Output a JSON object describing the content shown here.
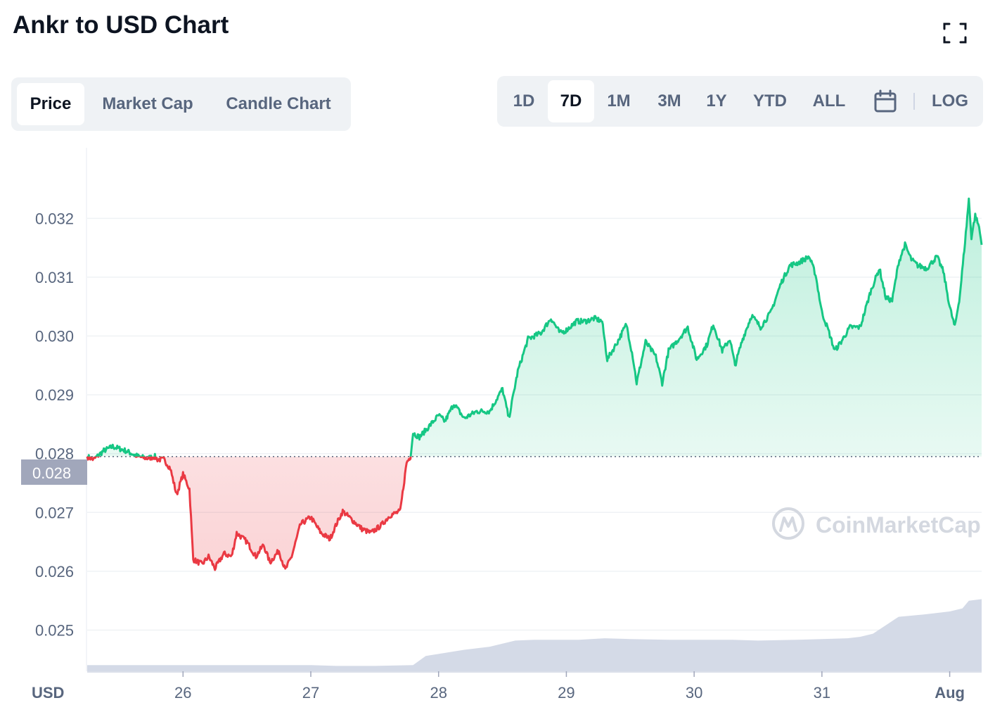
{
  "title": "Ankr to USD Chart",
  "expand_icon": "expand-icon",
  "calendar_icon": "calendar-icon",
  "tabs": [
    {
      "label": "Price",
      "active": true
    },
    {
      "label": "Market Cap",
      "active": false
    },
    {
      "label": "Candle Chart",
      "active": false
    }
  ],
  "ranges": [
    {
      "label": "1D",
      "active": false
    },
    {
      "label": "7D",
      "active": true
    },
    {
      "label": "1M",
      "active": false
    },
    {
      "label": "3M",
      "active": false
    },
    {
      "label": "1Y",
      "active": false
    },
    {
      "label": "YTD",
      "active": false
    },
    {
      "label": "ALL",
      "active": false
    }
  ],
  "log_label": "LOG",
  "watermark": "CoinMarketCap",
  "colors": {
    "up": "#16c784",
    "down": "#ea3943",
    "volume": "#cfd6e4",
    "current_label_bg": "#a1a7bb"
  },
  "chart_data": {
    "type": "area",
    "xlabel": "USD",
    "y_ticks": [
      "0.025",
      "0.026",
      "0.027",
      "0.028",
      "0.029",
      "0.030",
      "0.031",
      "0.032"
    ],
    "x_ticks": [
      "26",
      "27",
      "28",
      "29",
      "30",
      "31",
      "Aug"
    ],
    "ylim": [
      0.0243,
      0.0332
    ],
    "x_range_days": [
      25.25,
      32.25
    ],
    "baseline_price": 0.02795,
    "current_label": "0.028",
    "grid": true,
    "series": [
      {
        "values": [
          [
            25.25,
            0.02795
          ],
          [
            25.3,
            0.0279
          ],
          [
            25.38,
            0.02805
          ],
          [
            25.45,
            0.02812
          ],
          [
            25.55,
            0.02805
          ],
          [
            25.65,
            0.02795
          ],
          [
            25.72,
            0.02792
          ],
          [
            25.78,
            0.02795
          ],
          [
            25.8,
            0.0279
          ],
          [
            25.85,
            0.0279
          ],
          [
            25.9,
            0.02775
          ],
          [
            25.95,
            0.0273
          ],
          [
            26.0,
            0.02765
          ],
          [
            26.05,
            0.0274
          ],
          [
            26.08,
            0.0262
          ],
          [
            26.15,
            0.02612
          ],
          [
            26.2,
            0.02625
          ],
          [
            26.25,
            0.02605
          ],
          [
            26.32,
            0.0263
          ],
          [
            26.38,
            0.02625
          ],
          [
            26.42,
            0.02665
          ],
          [
            26.5,
            0.0265
          ],
          [
            26.57,
            0.02625
          ],
          [
            26.63,
            0.02645
          ],
          [
            26.68,
            0.02615
          ],
          [
            26.75,
            0.02635
          ],
          [
            26.8,
            0.02602
          ],
          [
            26.85,
            0.02625
          ],
          [
            26.92,
            0.0268
          ],
          [
            27.0,
            0.02692
          ],
          [
            27.08,
            0.02665
          ],
          [
            27.15,
            0.02655
          ],
          [
            27.2,
            0.0268
          ],
          [
            27.25,
            0.02702
          ],
          [
            27.32,
            0.02688
          ],
          [
            27.4,
            0.02672
          ],
          [
            27.47,
            0.02665
          ],
          [
            27.55,
            0.02678
          ],
          [
            27.62,
            0.02695
          ],
          [
            27.7,
            0.02702
          ],
          [
            27.75,
            0.02785
          ],
          [
            27.78,
            0.02795
          ],
          [
            27.8,
            0.02835
          ],
          [
            27.85,
            0.02828
          ],
          [
            27.92,
            0.02845
          ],
          [
            28.0,
            0.02865
          ],
          [
            28.05,
            0.02855
          ],
          [
            28.12,
            0.02885
          ],
          [
            28.2,
            0.0286
          ],
          [
            28.3,
            0.02872
          ],
          [
            28.4,
            0.02872
          ],
          [
            28.5,
            0.0291
          ],
          [
            28.55,
            0.0286
          ],
          [
            28.62,
            0.0294
          ],
          [
            28.7,
            0.02995
          ],
          [
            28.8,
            0.03005
          ],
          [
            28.88,
            0.0303
          ],
          [
            28.95,
            0.03005
          ],
          [
            29.0,
            0.0301
          ],
          [
            29.08,
            0.03025
          ],
          [
            29.15,
            0.03025
          ],
          [
            29.22,
            0.0303
          ],
          [
            29.28,
            0.03025
          ],
          [
            29.32,
            0.0296
          ],
          [
            29.4,
            0.0299
          ],
          [
            29.47,
            0.0302
          ],
          [
            29.52,
            0.02965
          ],
          [
            29.55,
            0.0292
          ],
          [
            29.62,
            0.0299
          ],
          [
            29.7,
            0.02965
          ],
          [
            29.75,
            0.0292
          ],
          [
            29.8,
            0.02975
          ],
          [
            29.88,
            0.02995
          ],
          [
            29.95,
            0.03015
          ],
          [
            30.02,
            0.0296
          ],
          [
            30.1,
            0.02985
          ],
          [
            30.15,
            0.0302
          ],
          [
            30.22,
            0.02975
          ],
          [
            30.28,
            0.02995
          ],
          [
            30.32,
            0.0295
          ],
          [
            30.38,
            0.02995
          ],
          [
            30.45,
            0.03035
          ],
          [
            30.52,
            0.03015
          ],
          [
            30.6,
            0.0304
          ],
          [
            30.68,
            0.0309
          ],
          [
            30.75,
            0.0312
          ],
          [
            30.82,
            0.03125
          ],
          [
            30.9,
            0.03135
          ],
          [
            30.95,
            0.03105
          ],
          [
            31.0,
            0.0304
          ],
          [
            31.05,
            0.0301
          ],
          [
            31.1,
            0.02975
          ],
          [
            31.15,
            0.0299
          ],
          [
            31.22,
            0.03015
          ],
          [
            31.3,
            0.03015
          ],
          [
            31.38,
            0.03075
          ],
          [
            31.45,
            0.03115
          ],
          [
            31.5,
            0.03065
          ],
          [
            31.55,
            0.0306
          ],
          [
            31.6,
            0.03125
          ],
          [
            31.65,
            0.03155
          ],
          [
            31.7,
            0.0313
          ],
          [
            31.75,
            0.0312
          ],
          [
            31.82,
            0.03115
          ],
          [
            31.9,
            0.03135
          ],
          [
            31.95,
            0.0311
          ],
          [
            32.0,
            0.0305
          ],
          [
            32.04,
            0.03015
          ],
          [
            32.08,
            0.0307
          ],
          [
            32.12,
            0.0316
          ],
          [
            32.15,
            0.03232
          ],
          [
            32.17,
            0.03168
          ],
          [
            32.2,
            0.03205
          ],
          [
            32.23,
            0.03185
          ],
          [
            32.25,
            0.03155
          ]
        ]
      }
    ],
    "volume": {
      "ylim": [
        0,
        1
      ],
      "values": [
        [
          25.25,
          0.08
        ],
        [
          25.8,
          0.08
        ],
        [
          26.0,
          0.08
        ],
        [
          26.5,
          0.08
        ],
        [
          27.0,
          0.08
        ],
        [
          27.2,
          0.07
        ],
        [
          27.5,
          0.07
        ],
        [
          27.8,
          0.08
        ],
        [
          27.9,
          0.2
        ],
        [
          28.2,
          0.28
        ],
        [
          28.4,
          0.32
        ],
        [
          28.6,
          0.4
        ],
        [
          28.75,
          0.41
        ],
        [
          28.9,
          0.41
        ],
        [
          29.1,
          0.41
        ],
        [
          29.3,
          0.43
        ],
        [
          29.5,
          0.42
        ],
        [
          29.8,
          0.41
        ],
        [
          30.0,
          0.41
        ],
        [
          30.3,
          0.41
        ],
        [
          30.5,
          0.4
        ],
        [
          30.8,
          0.41
        ],
        [
          31.0,
          0.42
        ],
        [
          31.2,
          0.43
        ],
        [
          31.3,
          0.45
        ],
        [
          31.4,
          0.49
        ],
        [
          31.5,
          0.6
        ],
        [
          31.6,
          0.71
        ],
        [
          31.8,
          0.74
        ],
        [
          32.0,
          0.78
        ],
        [
          32.1,
          0.82
        ],
        [
          32.15,
          0.92
        ],
        [
          32.25,
          0.94
        ]
      ]
    }
  }
}
